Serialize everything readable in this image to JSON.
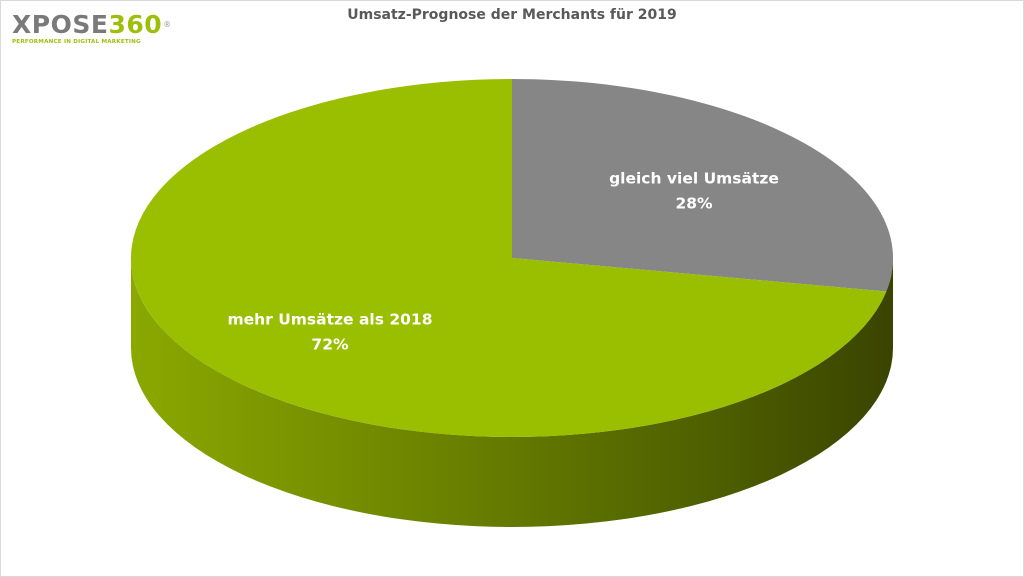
{
  "brand": {
    "part1": "XPOSE",
    "part2": "360",
    "reg": "®",
    "tagline": "PERFORMANCE IN DIGITAL MARKETING"
  },
  "chart_data": {
    "type": "pie",
    "style": "3d",
    "title": "Umsatz-Prognose der Merchants für 2019",
    "slices": [
      {
        "label": "gleich viel Umsätze",
        "value": 28,
        "value_label": "28%",
        "color": "#868686"
      },
      {
        "label": "mehr Umsätze als 2018",
        "value": 72,
        "value_label": "72%",
        "color": "#99bf00"
      }
    ],
    "legend": "none",
    "data_labels": "inside"
  }
}
